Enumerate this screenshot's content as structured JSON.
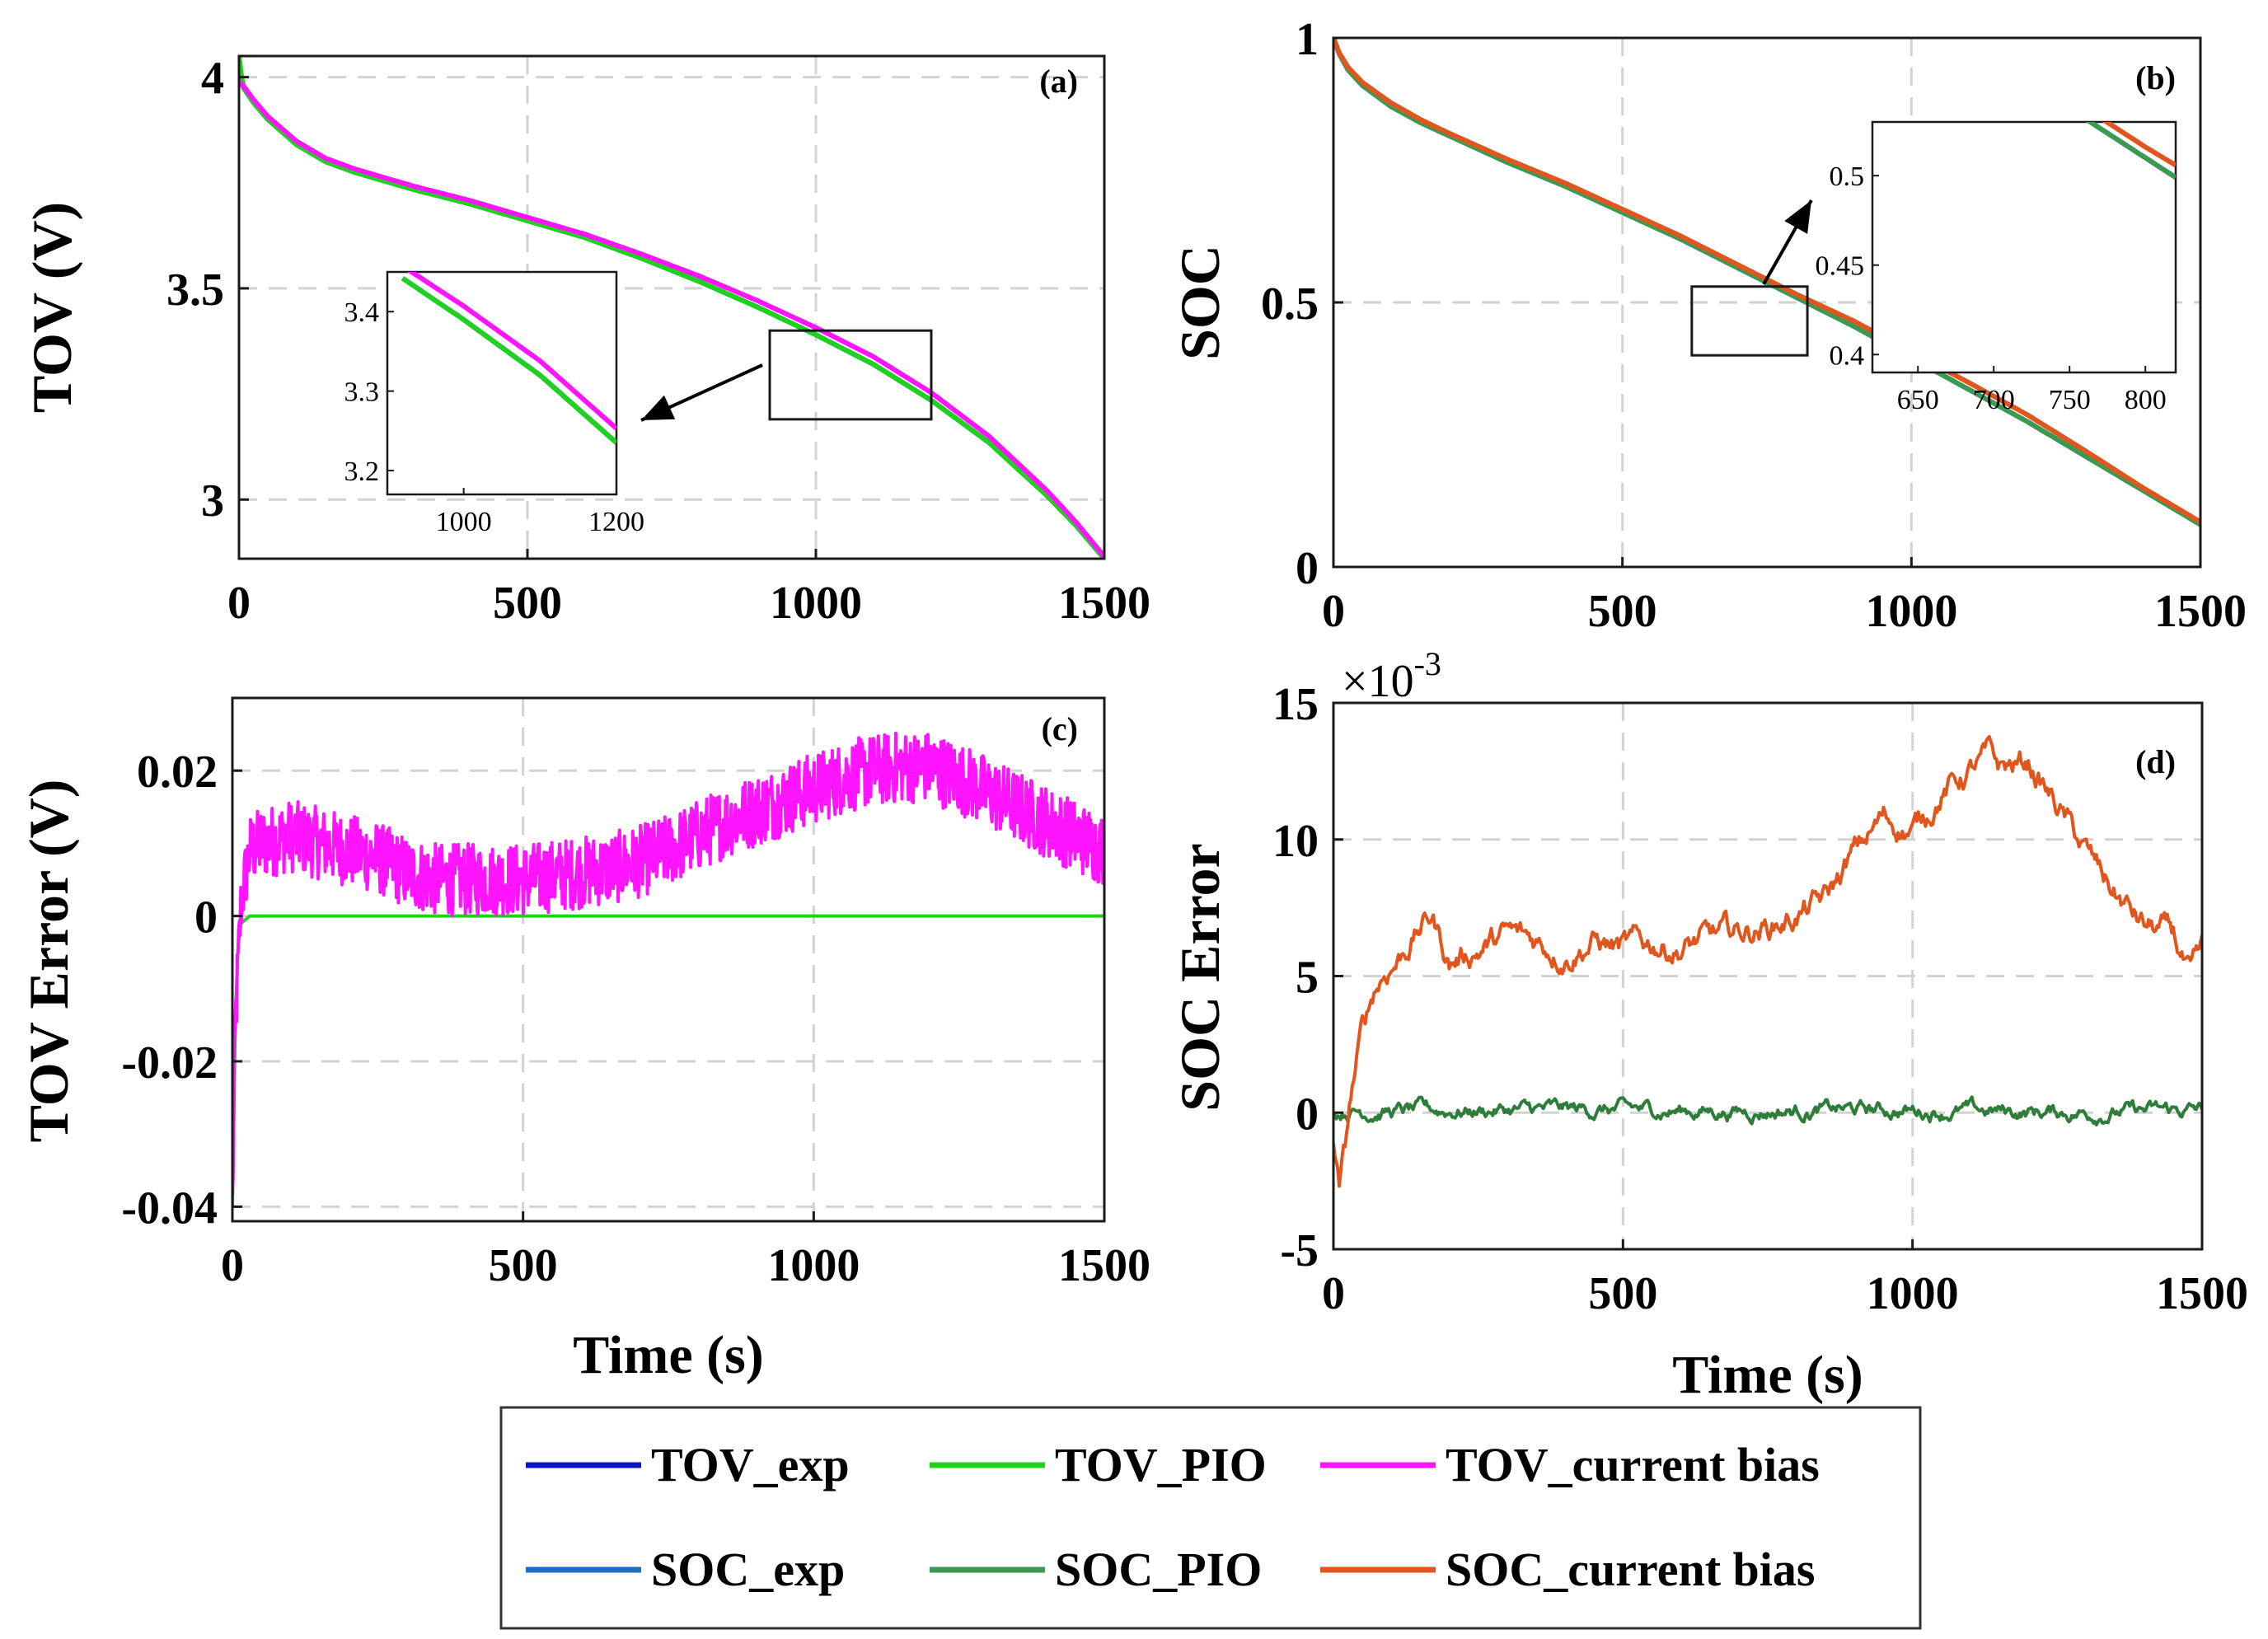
{
  "chart_data": [
    {
      "id": "a",
      "type": "line",
      "panel_label": "(a)",
      "ylabel": "TOV (V)",
      "xlabel": "",
      "xlim": [
        0,
        1500
      ],
      "ylim": [
        2.86,
        4.05
      ],
      "xticks": [
        "0",
        "500",
        "1000",
        "1500"
      ],
      "xtick_values": [
        0,
        500,
        1000,
        1500
      ],
      "yticks": [
        "3",
        "3.5",
        "4"
      ],
      "ytick_values": [
        3,
        3.5,
        4
      ],
      "grid": true,
      "series": [
        {
          "name": "TOV_exp",
          "color": "#0a14c8",
          "x": [
            0,
            10,
            25,
            50,
            100,
            150,
            200,
            300,
            400,
            500,
            600,
            700,
            800,
            900,
            1000,
            1100,
            1200,
            1300,
            1400,
            1450,
            1500
          ],
          "y": [
            4.0,
            3.97,
            3.94,
            3.9,
            3.84,
            3.8,
            3.775,
            3.735,
            3.7,
            3.66,
            3.62,
            3.57,
            3.515,
            3.455,
            3.39,
            3.32,
            3.235,
            3.135,
            3.01,
            2.94,
            2.86
          ]
        },
        {
          "name": "TOV_PIO",
          "color": "#1ed21e",
          "x": [
            0,
            4,
            10,
            25,
            50,
            100,
            150,
            200,
            300,
            400,
            500,
            600,
            700,
            800,
            900,
            1000,
            1100,
            1200,
            1300,
            1400,
            1450,
            1500
          ],
          "y": [
            4.05,
            4.0,
            3.97,
            3.94,
            3.9,
            3.84,
            3.8,
            3.775,
            3.735,
            3.7,
            3.66,
            3.62,
            3.57,
            3.515,
            3.455,
            3.39,
            3.32,
            3.235,
            3.135,
            3.01,
            2.94,
            2.86
          ]
        },
        {
          "name": "TOV_current bias",
          "color": "#ff14ff",
          "x": [
            0,
            10,
            25,
            50,
            100,
            150,
            200,
            300,
            400,
            500,
            600,
            700,
            800,
            900,
            1000,
            1100,
            1200,
            1300,
            1400,
            1450,
            1500
          ],
          "y": [
            3.99,
            3.975,
            3.947,
            3.907,
            3.848,
            3.808,
            3.783,
            3.743,
            3.708,
            3.668,
            3.628,
            3.58,
            3.528,
            3.47,
            3.407,
            3.338,
            3.253,
            3.15,
            3.022,
            2.948,
            2.865
          ]
        }
      ],
      "zoom_region": {
        "x": [
          920,
          1200
        ],
        "y": [
          3.19,
          3.4
        ]
      },
      "inset": {
        "xlim": [
          900,
          1200
        ],
        "ylim": [
          3.17,
          3.45
        ],
        "xticks": [
          "1000",
          "1200"
        ],
        "xtick_values": [
          1000,
          1200
        ],
        "yticks": [
          "3.2",
          "3.3",
          "3.4"
        ],
        "ytick_values": [
          3.2,
          3.3,
          3.4
        ]
      }
    },
    {
      "id": "b",
      "type": "line",
      "panel_label": "(b)",
      "ylabel": "SOC",
      "xlabel": "",
      "xlim": [
        0,
        1500
      ],
      "ylim": [
        0,
        1
      ],
      "xticks": [
        "0",
        "500",
        "1000",
        "1500"
      ],
      "xtick_values": [
        0,
        500,
        1000,
        1500
      ],
      "yticks": [
        "0",
        "0.5",
        "1"
      ],
      "ytick_values": [
        0,
        0.5,
        1
      ],
      "grid": true,
      "series": [
        {
          "name": "SOC_exp",
          "color": "#1f6fbf",
          "x": [
            0,
            10,
            25,
            50,
            100,
            150,
            200,
            300,
            400,
            500,
            600,
            700,
            800,
            900,
            1000,
            1100,
            1200,
            1300,
            1400,
            1500
          ],
          "y": [
            1.0,
            0.97,
            0.94,
            0.91,
            0.87,
            0.84,
            0.815,
            0.765,
            0.72,
            0.67,
            0.62,
            0.565,
            0.51,
            0.455,
            0.395,
            0.335,
            0.275,
            0.21,
            0.145,
            0.08
          ]
        },
        {
          "name": "SOC_PIO",
          "color": "#3c9a50",
          "x": [
            0,
            10,
            25,
            50,
            100,
            150,
            200,
            300,
            400,
            500,
            600,
            700,
            800,
            900,
            1000,
            1100,
            1200,
            1300,
            1400,
            1500
          ],
          "y": [
            1.0,
            0.97,
            0.94,
            0.91,
            0.87,
            0.84,
            0.815,
            0.765,
            0.72,
            0.67,
            0.62,
            0.565,
            0.51,
            0.455,
            0.395,
            0.335,
            0.275,
            0.21,
            0.145,
            0.08
          ]
        },
        {
          "name": "SOC_current bias",
          "color": "#e0561e",
          "x": [
            0,
            10,
            25,
            50,
            100,
            150,
            200,
            300,
            400,
            500,
            600,
            700,
            800,
            900,
            1000,
            1100,
            1200,
            1300,
            1400,
            1500
          ],
          "y": [
            1.0,
            0.972,
            0.945,
            0.916,
            0.877,
            0.846,
            0.82,
            0.771,
            0.726,
            0.676,
            0.626,
            0.571,
            0.516,
            0.465,
            0.406,
            0.348,
            0.288,
            0.22,
            0.15,
            0.085
          ]
        }
      ],
      "zoom_region": {
        "x": [
          620,
          820
        ],
        "y": [
          0.4,
          0.53
        ]
      },
      "inset": {
        "xlim": [
          620,
          820
        ],
        "ylim": [
          0.39,
          0.53
        ],
        "xticks": [
          "650",
          "700",
          "750",
          "800"
        ],
        "xtick_values": [
          650,
          700,
          750,
          800
        ],
        "yticks": [
          "0.4",
          "0.45",
          "0.5"
        ],
        "ytick_values": [
          0.4,
          0.45,
          0.5
        ]
      }
    },
    {
      "id": "c",
      "type": "line",
      "panel_label": "(c)",
      "ylabel": "TOV Error (V)",
      "xlabel": "Time (s)",
      "xlim": [
        0,
        1500
      ],
      "ylim": [
        -0.042,
        0.03
      ],
      "xticks": [
        "0",
        "500",
        "1000",
        "1500"
      ],
      "xtick_values": [
        0,
        500,
        1000,
        1500
      ],
      "yticks": [
        "-0.04",
        "-0.02",
        "0",
        "0.02"
      ],
      "ytick_values": [
        -0.04,
        -0.02,
        0,
        0.02
      ],
      "grid": true,
      "series": [
        {
          "name": "TOV_PIO",
          "color": "#1ed21e",
          "x": [
            0,
            3,
            8,
            15,
            30,
            50,
            100,
            500,
            1000,
            1500
          ],
          "y": [
            -0.04,
            -0.02,
            -0.005,
            -0.001,
            0.0,
            0.0,
            0.0,
            0.0,
            0.0,
            0.0
          ]
        },
        {
          "name": "TOV_current bias",
          "color": "#ff14ff",
          "x": [
            0,
            5,
            15,
            30,
            50,
            100,
            150,
            200,
            250,
            300,
            350,
            400,
            450,
            500,
            550,
            600,
            650,
            700,
            750,
            800,
            850,
            900,
            950,
            1000,
            1050,
            1100,
            1150,
            1200,
            1250,
            1300,
            1350,
            1400,
            1450,
            1500
          ],
          "y": [
            -0.04,
            -0.015,
            0.002,
            0.009,
            0.01,
            0.011,
            0.01,
            0.009,
            0.008,
            0.006,
            0.005,
            0.005,
            0.005,
            0.005,
            0.0055,
            0.006,
            0.0065,
            0.0075,
            0.009,
            0.011,
            0.013,
            0.0145,
            0.016,
            0.0175,
            0.019,
            0.02,
            0.0205,
            0.0205,
            0.019,
            0.017,
            0.015,
            0.013,
            0.011,
            0.009
          ],
          "noise_amplitude": 0.005
        }
      ]
    },
    {
      "id": "d",
      "type": "line",
      "panel_label": "(d)",
      "ylabel": "SOC Error",
      "xlabel": "Time (s)",
      "exponent_label": "×10",
      "exponent_power": "-3",
      "xlim": [
        0,
        1500
      ],
      "ylim": [
        -5,
        15
      ],
      "xticks": [
        "0",
        "500",
        "1000",
        "1500"
      ],
      "xtick_values": [
        0,
        500,
        1000,
        1500
      ],
      "yticks": [
        "-5",
        "0",
        "5",
        "10",
        "15"
      ],
      "ytick_values": [
        -5,
        0,
        5,
        10,
        15
      ],
      "grid": true,
      "series": [
        {
          "name": "SOC_PIO",
          "color": "#2e7d3a",
          "x": [
            0,
            20,
            100,
            300,
            500,
            700,
            900,
            1100,
            1300,
            1500
          ],
          "y": [
            0,
            0.1,
            0.05,
            0.1,
            0.1,
            0.05,
            0.1,
            0.05,
            0.0,
            0.1
          ],
          "noise_amplitude": 0.35
        },
        {
          "name": "SOC_current bias",
          "color": "#e0561e",
          "x": [
            0,
            10,
            20,
            30,
            50,
            70,
            90,
            110,
            140,
            170,
            200,
            250,
            300,
            350,
            400,
            450,
            500,
            550,
            600,
            650,
            700,
            750,
            800,
            850,
            900,
            950,
            1000,
            1050,
            1100,
            1130,
            1150,
            1200,
            1250,
            1300,
            1350,
            1400,
            1450,
            1480,
            1500
          ],
          "y": [
            -1,
            -2.8,
            -1.5,
            0.5,
            3,
            4.5,
            5.2,
            5.6,
            6.5,
            7.2,
            5.5,
            6.0,
            6.5,
            6.3,
            5.8,
            6.3,
            6.0,
            6.2,
            6.0,
            6.4,
            6.6,
            6.8,
            7.2,
            7.8,
            9.5,
            10.8,
            10.3,
            11.7,
            12.5,
            13.0,
            12.6,
            12.8,
            11.2,
            9.5,
            8.0,
            6.8,
            6.5,
            4.8,
            5.7
          ],
          "noise_amplitude": 0.6
        }
      ]
    }
  ],
  "legend": {
    "placement": "bottom-center",
    "rows": [
      [
        {
          "label": "TOV_exp",
          "color": "#0a14c8"
        },
        {
          "label": "TOV_PIO",
          "color": "#1ed21e"
        },
        {
          "label": "TOV_current bias",
          "color": "#ff14ff"
        }
      ],
      [
        {
          "label": "SOC_exp",
          "color": "#1f6fbf"
        },
        {
          "label": "SOC_PIO",
          "color": "#3c9a50"
        },
        {
          "label": "SOC_current bias",
          "color": "#e0561e"
        }
      ]
    ]
  }
}
